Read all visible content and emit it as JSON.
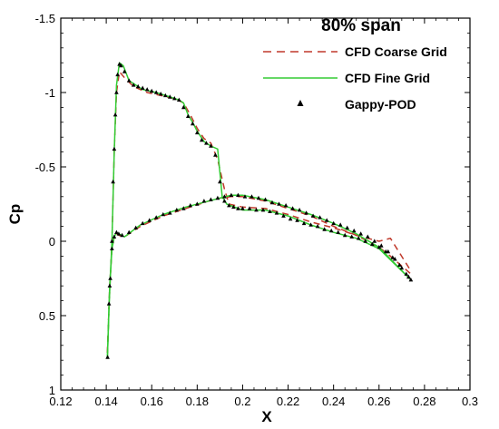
{
  "chart_data": {
    "type": "line",
    "title": "80% span",
    "xlabel": "X",
    "ylabel": "Cp",
    "xlim": [
      0.12,
      0.3
    ],
    "ylim": [
      1.0,
      -1.5
    ],
    "y_axis_inverted": true,
    "grid": false,
    "legend_position": "top-right",
    "x_ticks": [
      "0.12",
      "0.14",
      "0.16",
      "0.18",
      "0.2",
      "0.22",
      "0.24",
      "0.26",
      "0.28",
      "0.3"
    ],
    "x_tick_values": [
      0.12,
      0.14,
      0.16,
      0.18,
      0.2,
      0.22,
      0.24,
      0.26,
      0.28,
      0.3
    ],
    "y_ticks": [
      "-1.5",
      "-1",
      "-0.5",
      "0",
      "0.5",
      "1"
    ],
    "y_tick_values": [
      -1.5,
      -1.0,
      -0.5,
      0.0,
      0.5,
      1.0
    ],
    "series": [
      {
        "name": "CFD Coarse Grid",
        "color": "#c0392b",
        "style": "dashed",
        "upper": [
          [
            0.1405,
            0.75
          ],
          [
            0.1412,
            0.45
          ],
          [
            0.1425,
            0.0
          ],
          [
            0.1435,
            -0.6
          ],
          [
            0.1445,
            -1.0
          ],
          [
            0.1458,
            -1.14
          ],
          [
            0.148,
            -1.1
          ],
          [
            0.152,
            -1.04
          ],
          [
            0.158,
            -1.0
          ],
          [
            0.164,
            -0.98
          ],
          [
            0.17,
            -0.96
          ],
          [
            0.174,
            -0.93
          ],
          [
            0.177,
            -0.85
          ],
          [
            0.18,
            -0.76
          ],
          [
            0.183,
            -0.69
          ],
          [
            0.186,
            -0.66
          ],
          [
            0.189,
            -0.55
          ],
          [
            0.192,
            -0.35
          ],
          [
            0.194,
            -0.25
          ],
          [
            0.2,
            -0.23
          ],
          [
            0.21,
            -0.22
          ],
          [
            0.22,
            -0.18
          ],
          [
            0.23,
            -0.13
          ],
          [
            0.24,
            -0.09
          ],
          [
            0.25,
            -0.04
          ],
          [
            0.26,
            0.0
          ],
          [
            0.265,
            -0.02
          ],
          [
            0.274,
            0.2
          ]
        ],
        "lower": [
          [
            0.1405,
            0.75
          ],
          [
            0.1415,
            0.3
          ],
          [
            0.1425,
            0.05
          ],
          [
            0.1435,
            -0.03
          ],
          [
            0.1445,
            -0.05
          ],
          [
            0.1455,
            -0.04
          ],
          [
            0.148,
            -0.03
          ],
          [
            0.155,
            -0.1
          ],
          [
            0.165,
            -0.17
          ],
          [
            0.175,
            -0.22
          ],
          [
            0.185,
            -0.27
          ],
          [
            0.19,
            -0.29
          ],
          [
            0.195,
            -0.3
          ],
          [
            0.2,
            -0.3
          ],
          [
            0.21,
            -0.27
          ],
          [
            0.22,
            -0.22
          ],
          [
            0.23,
            -0.17
          ],
          [
            0.24,
            -0.1
          ],
          [
            0.25,
            -0.04
          ],
          [
            0.26,
            0.04
          ],
          [
            0.265,
            0.1
          ],
          [
            0.274,
            0.22
          ]
        ]
      },
      {
        "name": "CFD Fine Grid",
        "color": "#33cc33",
        "style": "solid",
        "upper": [
          [
            0.1405,
            0.78
          ],
          [
            0.1412,
            0.45
          ],
          [
            0.1425,
            0.0
          ],
          [
            0.1435,
            -0.6
          ],
          [
            0.1445,
            -1.05
          ],
          [
            0.1458,
            -1.2
          ],
          [
            0.1475,
            -1.18
          ],
          [
            0.15,
            -1.08
          ],
          [
            0.156,
            -1.02
          ],
          [
            0.162,
            -1.0
          ],
          [
            0.168,
            -0.97
          ],
          [
            0.172,
            -0.95
          ],
          [
            0.174,
            -0.93
          ],
          [
            0.176,
            -0.85
          ],
          [
            0.178,
            -0.8
          ],
          [
            0.18,
            -0.74
          ],
          [
            0.183,
            -0.67
          ],
          [
            0.186,
            -0.64
          ],
          [
            0.189,
            -0.62
          ],
          [
            0.191,
            -0.3
          ],
          [
            0.193,
            -0.25
          ],
          [
            0.2,
            -0.21
          ],
          [
            0.21,
            -0.21
          ],
          [
            0.22,
            -0.17
          ],
          [
            0.23,
            -0.11
          ],
          [
            0.24,
            -0.06
          ],
          [
            0.25,
            -0.02
          ],
          [
            0.26,
            0.05
          ],
          [
            0.274,
            0.26
          ]
        ],
        "lower": [
          [
            0.1405,
            0.78
          ],
          [
            0.1415,
            0.3
          ],
          [
            0.1425,
            0.05
          ],
          [
            0.1435,
            -0.03
          ],
          [
            0.1445,
            -0.06
          ],
          [
            0.1455,
            -0.05
          ],
          [
            0.148,
            -0.03
          ],
          [
            0.155,
            -0.11
          ],
          [
            0.165,
            -0.18
          ],
          [
            0.175,
            -0.23
          ],
          [
            0.185,
            -0.27
          ],
          [
            0.19,
            -0.29
          ],
          [
            0.195,
            -0.31
          ],
          [
            0.2,
            -0.31
          ],
          [
            0.21,
            -0.28
          ],
          [
            0.22,
            -0.23
          ],
          [
            0.23,
            -0.18
          ],
          [
            0.24,
            -0.12
          ],
          [
            0.25,
            -0.05
          ],
          [
            0.26,
            0.04
          ],
          [
            0.274,
            0.26
          ]
        ]
      },
      {
        "name": "Gappy-POD",
        "color": "#000000",
        "style": "markers",
        "upper": [
          [
            0.1406,
            0.78
          ],
          [
            0.1412,
            0.42
          ],
          [
            0.1418,
            0.25
          ],
          [
            0.1425,
            0.0
          ],
          [
            0.143,
            -0.4
          ],
          [
            0.1435,
            -0.62
          ],
          [
            0.144,
            -0.85
          ],
          [
            0.1445,
            -1.0
          ],
          [
            0.145,
            -1.12
          ],
          [
            0.1458,
            -1.19
          ],
          [
            0.1465,
            -1.18
          ],
          [
            0.148,
            -1.14
          ],
          [
            0.15,
            -1.08
          ],
          [
            0.152,
            -1.05
          ],
          [
            0.154,
            -1.04
          ],
          [
            0.156,
            -1.03
          ],
          [
            0.158,
            -1.02
          ],
          [
            0.16,
            -1.01
          ],
          [
            0.162,
            -1.0
          ],
          [
            0.164,
            -0.99
          ],
          [
            0.166,
            -0.98
          ],
          [
            0.168,
            -0.97
          ],
          [
            0.17,
            -0.96
          ],
          [
            0.172,
            -0.95
          ],
          [
            0.174,
            -0.9
          ],
          [
            0.176,
            -0.84
          ],
          [
            0.178,
            -0.79
          ],
          [
            0.18,
            -0.73
          ],
          [
            0.182,
            -0.68
          ],
          [
            0.184,
            -0.66
          ],
          [
            0.186,
            -0.64
          ],
          [
            0.188,
            -0.58
          ],
          [
            0.19,
            -0.4
          ],
          [
            0.192,
            -0.27
          ],
          [
            0.194,
            -0.24
          ],
          [
            0.196,
            -0.23
          ],
          [
            0.198,
            -0.22
          ],
          [
            0.2,
            -0.22
          ],
          [
            0.203,
            -0.22
          ],
          [
            0.206,
            -0.21
          ],
          [
            0.209,
            -0.21
          ],
          [
            0.212,
            -0.2
          ],
          [
            0.215,
            -0.19
          ],
          [
            0.218,
            -0.17
          ],
          [
            0.221,
            -0.15
          ],
          [
            0.224,
            -0.14
          ],
          [
            0.227,
            -0.12
          ],
          [
            0.23,
            -0.11
          ],
          [
            0.233,
            -0.1
          ],
          [
            0.236,
            -0.08
          ],
          [
            0.239,
            -0.07
          ],
          [
            0.242,
            -0.06
          ],
          [
            0.245,
            -0.04
          ],
          [
            0.248,
            -0.03
          ],
          [
            0.251,
            -0.02
          ],
          [
            0.254,
            0.0
          ],
          [
            0.257,
            0.02
          ],
          [
            0.26,
            0.04
          ],
          [
            0.263,
            0.07
          ],
          [
            0.266,
            0.11
          ],
          [
            0.269,
            0.16
          ],
          [
            0.272,
            0.22
          ],
          [
            0.274,
            0.26
          ]
        ],
        "lower": [
          [
            0.1415,
            0.3
          ],
          [
            0.1425,
            0.05
          ],
          [
            0.1435,
            -0.03
          ],
          [
            0.1445,
            -0.06
          ],
          [
            0.1455,
            -0.05
          ],
          [
            0.147,
            -0.04
          ],
          [
            0.15,
            -0.06
          ],
          [
            0.153,
            -0.09
          ],
          [
            0.156,
            -0.12
          ],
          [
            0.159,
            -0.14
          ],
          [
            0.162,
            -0.16
          ],
          [
            0.165,
            -0.18
          ],
          [
            0.168,
            -0.19
          ],
          [
            0.171,
            -0.21
          ],
          [
            0.174,
            -0.22
          ],
          [
            0.177,
            -0.24
          ],
          [
            0.18,
            -0.25
          ],
          [
            0.183,
            -0.27
          ],
          [
            0.186,
            -0.28
          ],
          [
            0.189,
            -0.29
          ],
          [
            0.192,
            -0.3
          ],
          [
            0.195,
            -0.31
          ],
          [
            0.198,
            -0.31
          ],
          [
            0.201,
            -0.3
          ],
          [
            0.204,
            -0.3
          ],
          [
            0.207,
            -0.29
          ],
          [
            0.21,
            -0.28
          ],
          [
            0.213,
            -0.26
          ],
          [
            0.216,
            -0.25
          ],
          [
            0.219,
            -0.24
          ],
          [
            0.222,
            -0.22
          ],
          [
            0.225,
            -0.21
          ],
          [
            0.228,
            -0.19
          ],
          [
            0.231,
            -0.17
          ],
          [
            0.234,
            -0.16
          ],
          [
            0.237,
            -0.14
          ],
          [
            0.24,
            -0.12
          ],
          [
            0.243,
            -0.11
          ],
          [
            0.246,
            -0.09
          ],
          [
            0.249,
            -0.07
          ],
          [
            0.252,
            -0.05
          ],
          [
            0.255,
            -0.03
          ],
          [
            0.258,
            0.0
          ],
          [
            0.261,
            0.03
          ],
          [
            0.264,
            0.07
          ],
          [
            0.267,
            0.12
          ],
          [
            0.27,
            0.18
          ],
          [
            0.273,
            0.24
          ]
        ]
      }
    ]
  }
}
